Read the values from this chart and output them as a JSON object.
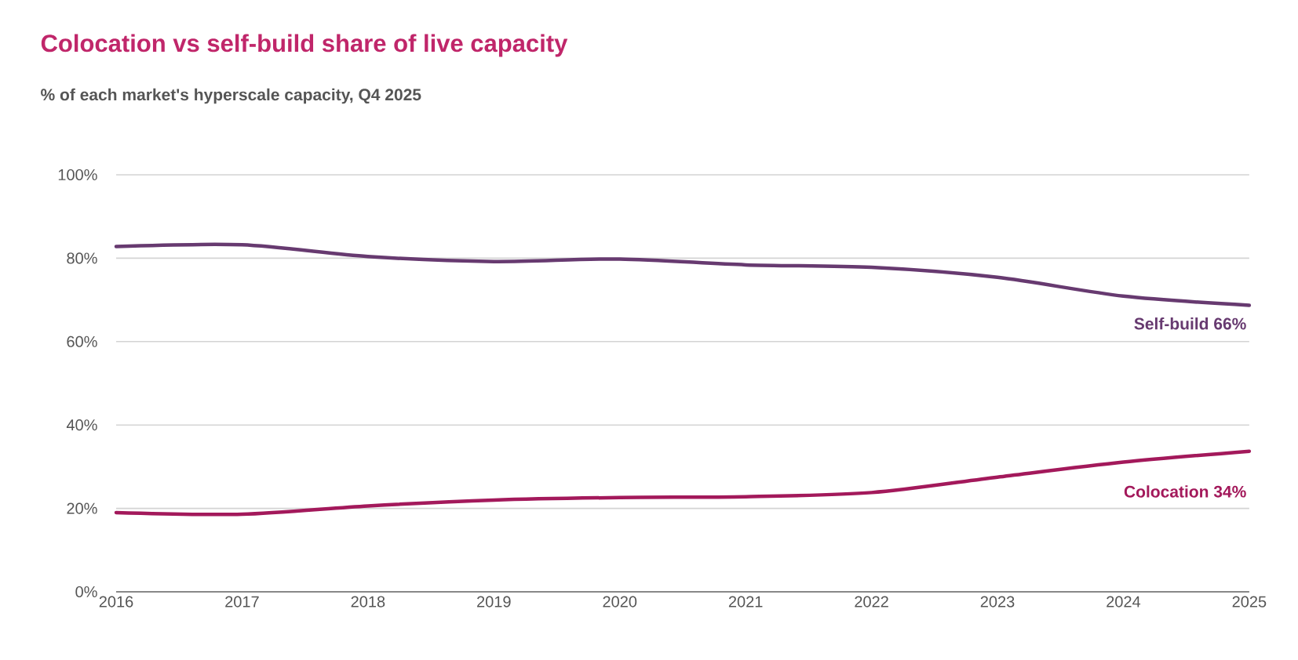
{
  "chart_data": {
    "type": "line",
    "title": "Colocation vs self-build share of live capacity",
    "subtitle": "% of each market's hyperscale capacity, Q4 2025",
    "x": [
      2016,
      2017,
      2018,
      2019,
      2020,
      2021,
      2022,
      2023,
      2024,
      2025
    ],
    "series": [
      {
        "name": "Self-build 66%",
        "color": "#673a70",
        "values": [
          82.8,
          83.2,
          80.4,
          79.2,
          79.8,
          78.4,
          77.8,
          75.4,
          70.9,
          68.7
        ]
      },
      {
        "name": "Colocation 34%",
        "color": "#a3195b",
        "values": [
          19.0,
          18.6,
          20.6,
          22.0,
          22.6,
          22.8,
          23.8,
          27.5,
          31.1,
          33.7
        ]
      }
    ],
    "xlim": [
      2016,
      2025
    ],
    "xticks": [
      2016,
      2017,
      2018,
      2019,
      2020,
      2021,
      2022,
      2023,
      2024,
      2025
    ],
    "ylim": [
      0,
      100
    ],
    "yticks": [
      {
        "value": 0,
        "label": "0%"
      },
      {
        "value": 20,
        "label": "20%"
      },
      {
        "value": 40,
        "label": "40%"
      },
      {
        "value": 60,
        "label": "60%"
      },
      {
        "value": 80,
        "label": "80%"
      },
      {
        "value": 100,
        "label": "100%"
      }
    ],
    "grid": "y",
    "line_style": "solid"
  }
}
